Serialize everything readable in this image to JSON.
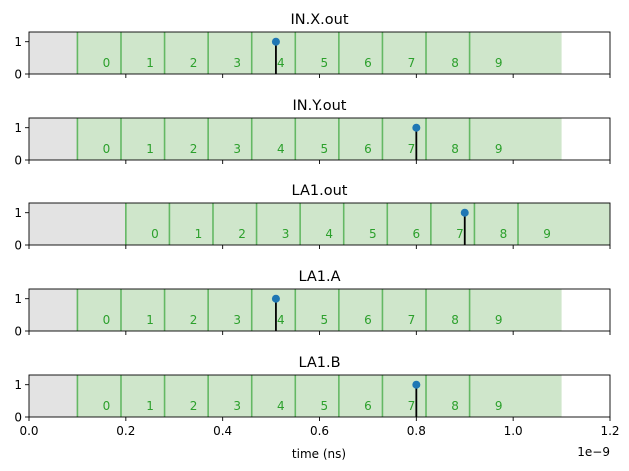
{
  "figure": {
    "xlabel": "time (ns)",
    "x_offset_label": "1e−9",
    "x_ticks": [
      0.0,
      0.2,
      0.4,
      0.6,
      0.8,
      1.0,
      1.2
    ],
    "x_tick_labels": [
      "0.0",
      "0.2",
      "0.4",
      "0.6",
      "0.8",
      "1.0",
      "1.2"
    ],
    "xlim": [
      0.0,
      1.2
    ],
    "colors": {
      "gray_region": "#e3e3e3",
      "band_fill": "#cfe6cb",
      "band_edge": "#64b864",
      "band_text": "#2ca02c",
      "marker": "#1f77b4",
      "stem": "#000000"
    }
  },
  "chart_data": [
    {
      "type": "timeline",
      "title": "IN.X.out",
      "ylim": [
        0,
        1.3
      ],
      "y_ticks": [
        0,
        1
      ],
      "gray_region": [
        0.0,
        0.1
      ],
      "bands": [
        {
          "label": "0",
          "start": 0.1,
          "end": 0.19
        },
        {
          "label": "1",
          "start": 0.19,
          "end": 0.28
        },
        {
          "label": "2",
          "start": 0.28,
          "end": 0.37
        },
        {
          "label": "3",
          "start": 0.37,
          "end": 0.46
        },
        {
          "label": "4",
          "start": 0.46,
          "end": 0.55
        },
        {
          "label": "5",
          "start": 0.55,
          "end": 0.64
        },
        {
          "label": "6",
          "start": 0.64,
          "end": 0.73
        },
        {
          "label": "7",
          "start": 0.73,
          "end": 0.82
        },
        {
          "label": "8",
          "start": 0.82,
          "end": 0.91
        },
        {
          "label": "9",
          "start": 0.91,
          "end": 1.1
        }
      ],
      "event": {
        "x": 0.51,
        "y": 1
      }
    },
    {
      "type": "timeline",
      "title": "IN.Y.out",
      "ylim": [
        0,
        1.3
      ],
      "y_ticks": [
        0,
        1
      ],
      "gray_region": [
        0.0,
        0.1
      ],
      "bands": [
        {
          "label": "0",
          "start": 0.1,
          "end": 0.19
        },
        {
          "label": "1",
          "start": 0.19,
          "end": 0.28
        },
        {
          "label": "2",
          "start": 0.28,
          "end": 0.37
        },
        {
          "label": "3",
          "start": 0.37,
          "end": 0.46
        },
        {
          "label": "4",
          "start": 0.46,
          "end": 0.55
        },
        {
          "label": "5",
          "start": 0.55,
          "end": 0.64
        },
        {
          "label": "6",
          "start": 0.64,
          "end": 0.73
        },
        {
          "label": "7",
          "start": 0.73,
          "end": 0.82
        },
        {
          "label": "8",
          "start": 0.82,
          "end": 0.91
        },
        {
          "label": "9",
          "start": 0.91,
          "end": 1.1
        }
      ],
      "event": {
        "x": 0.8,
        "y": 1
      }
    },
    {
      "type": "timeline",
      "title": "LA1.out",
      "ylim": [
        0,
        1.3
      ],
      "y_ticks": [
        0,
        1
      ],
      "gray_region": [
        0.0,
        0.2
      ],
      "bands": [
        {
          "label": "0",
          "start": 0.2,
          "end": 0.29
        },
        {
          "label": "1",
          "start": 0.29,
          "end": 0.38
        },
        {
          "label": "2",
          "start": 0.38,
          "end": 0.47
        },
        {
          "label": "3",
          "start": 0.47,
          "end": 0.56
        },
        {
          "label": "4",
          "start": 0.56,
          "end": 0.65
        },
        {
          "label": "5",
          "start": 0.65,
          "end": 0.74
        },
        {
          "label": "6",
          "start": 0.74,
          "end": 0.83
        },
        {
          "label": "7",
          "start": 0.83,
          "end": 0.92
        },
        {
          "label": "8",
          "start": 0.92,
          "end": 1.01
        },
        {
          "label": "9",
          "start": 1.01,
          "end": 1.2
        }
      ],
      "event": {
        "x": 0.9,
        "y": 1
      }
    },
    {
      "type": "timeline",
      "title": "LA1.A",
      "ylim": [
        0,
        1.3
      ],
      "y_ticks": [
        0,
        1
      ],
      "gray_region": [
        0.0,
        0.1
      ],
      "bands": [
        {
          "label": "0",
          "start": 0.1,
          "end": 0.19
        },
        {
          "label": "1",
          "start": 0.19,
          "end": 0.28
        },
        {
          "label": "2",
          "start": 0.28,
          "end": 0.37
        },
        {
          "label": "3",
          "start": 0.37,
          "end": 0.46
        },
        {
          "label": "4",
          "start": 0.46,
          "end": 0.55
        },
        {
          "label": "5",
          "start": 0.55,
          "end": 0.64
        },
        {
          "label": "6",
          "start": 0.64,
          "end": 0.73
        },
        {
          "label": "7",
          "start": 0.73,
          "end": 0.82
        },
        {
          "label": "8",
          "start": 0.82,
          "end": 0.91
        },
        {
          "label": "9",
          "start": 0.91,
          "end": 1.1
        }
      ],
      "event": {
        "x": 0.51,
        "y": 1
      }
    },
    {
      "type": "timeline",
      "title": "LA1.B",
      "ylim": [
        0,
        1.3
      ],
      "y_ticks": [
        0,
        1
      ],
      "gray_region": [
        0.0,
        0.1
      ],
      "bands": [
        {
          "label": "0",
          "start": 0.1,
          "end": 0.19
        },
        {
          "label": "1",
          "start": 0.19,
          "end": 0.28
        },
        {
          "label": "2",
          "start": 0.28,
          "end": 0.37
        },
        {
          "label": "3",
          "start": 0.37,
          "end": 0.46
        },
        {
          "label": "4",
          "start": 0.46,
          "end": 0.55
        },
        {
          "label": "5",
          "start": 0.55,
          "end": 0.64
        },
        {
          "label": "6",
          "start": 0.64,
          "end": 0.73
        },
        {
          "label": "7",
          "start": 0.73,
          "end": 0.82
        },
        {
          "label": "8",
          "start": 0.82,
          "end": 0.91
        },
        {
          "label": "9",
          "start": 0.91,
          "end": 1.1
        }
      ],
      "event": {
        "x": 0.8,
        "y": 1
      }
    }
  ]
}
